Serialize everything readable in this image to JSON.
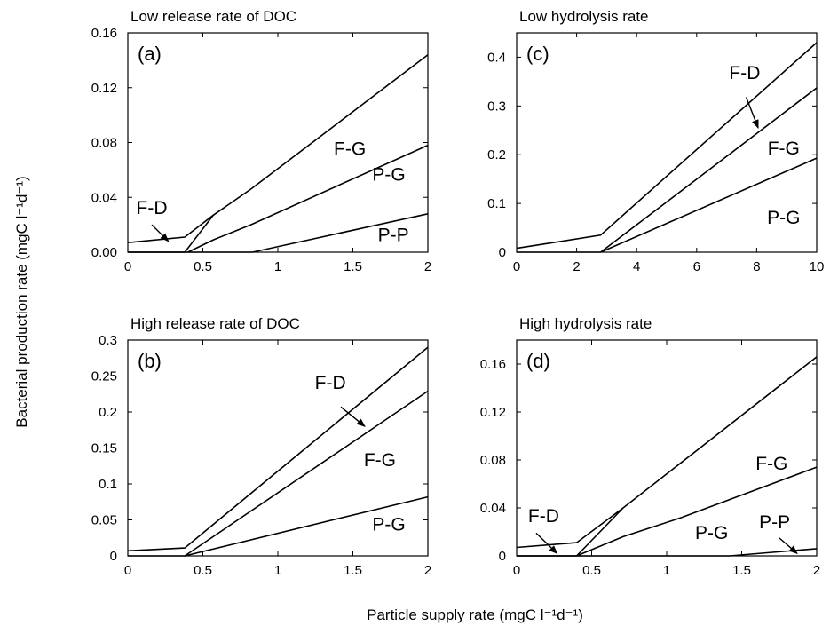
{
  "figure": {
    "ylabel": "Bacterial production rate (mgC l⁻¹d⁻¹)",
    "xlabel": "Particle supply rate (mgC l⁻¹d⁻¹)"
  },
  "chart_data": [
    {
      "id": "a",
      "type": "line",
      "panel_letter": "(a)",
      "title": "Low release rate of DOC",
      "xlim": [
        0,
        2
      ],
      "ylim": [
        0,
        0.16
      ],
      "xticks": [
        0,
        0.5,
        1,
        1.5,
        2
      ],
      "xtick_labels": [
        "0",
        "0.5",
        "1",
        "1.5",
        "2"
      ],
      "yticks": [
        0,
        0.04,
        0.08,
        0.12,
        0.16
      ],
      "ytick_labels": [
        "0.00",
        "0.04",
        "0.08",
        "0.12",
        "0.16"
      ],
      "series": [
        {
          "points": [
            [
              0,
              0.007
            ],
            [
              0.38,
              0.011
            ],
            [
              0.57,
              0.027
            ],
            [
              0.82,
              0.046
            ],
            [
              2,
              0.144
            ]
          ]
        },
        {
          "points": [
            [
              0,
              0
            ],
            [
              0.38,
              0
            ],
            [
              0.57,
              0.027
            ]
          ]
        },
        {
          "points": [
            [
              0.4,
              0
            ],
            [
              0.57,
              0.009
            ],
            [
              0.82,
              0.02
            ],
            [
              2,
              0.078
            ]
          ]
        },
        {
          "points": [
            [
              0,
              0
            ],
            [
              0.83,
              0
            ],
            [
              2,
              0.028
            ]
          ]
        }
      ],
      "region_labels": [
        {
          "text": "F-G",
          "x": 1.48,
          "y": 0.071
        },
        {
          "text": "P-G",
          "x": 1.74,
          "y": 0.052
        },
        {
          "text": "P-P",
          "x": 1.77,
          "y": 0.008
        },
        {
          "text": "F-D",
          "x": 0.16,
          "y": 0.028
        }
      ],
      "arrows": [
        {
          "from": [
            0.16,
            0.02
          ],
          "to": [
            0.27,
            0.008
          ]
        }
      ]
    },
    {
      "id": "b",
      "type": "line",
      "panel_letter": "(b)",
      "title": "High release rate of DOC",
      "xlim": [
        0,
        2
      ],
      "ylim": [
        0,
        0.3
      ],
      "xticks": [
        0,
        0.5,
        1,
        1.5,
        2
      ],
      "xtick_labels": [
        "0",
        "0.5",
        "1",
        "1.5",
        "2"
      ],
      "yticks": [
        0,
        0.05,
        0.1,
        0.15,
        0.2,
        0.25,
        0.3
      ],
      "ytick_labels": [
        "0",
        "0.05",
        "0.1",
        "0.15",
        "0.2",
        "0.25",
        "0.3"
      ],
      "series": [
        {
          "points": [
            [
              0,
              0.007
            ],
            [
              0.38,
              0.011
            ],
            [
              2,
              0.29
            ]
          ]
        },
        {
          "points": [
            [
              0,
              0
            ],
            [
              0.38,
              0
            ],
            [
              2,
              0.229
            ]
          ]
        },
        {
          "points": [
            [
              0.38,
              0
            ],
            [
              2,
              0.082
            ]
          ]
        }
      ],
      "region_labels": [
        {
          "text": "F-D",
          "x": 1.35,
          "y": 0.232
        },
        {
          "text": "F-G",
          "x": 1.68,
          "y": 0.125
        },
        {
          "text": "P-G",
          "x": 1.74,
          "y": 0.035
        }
      ],
      "arrows": [
        {
          "from": [
            1.42,
            0.207
          ],
          "to": [
            1.58,
            0.18
          ]
        }
      ]
    },
    {
      "id": "c",
      "type": "line",
      "panel_letter": "(c)",
      "title": "Low hydrolysis rate",
      "xlim": [
        0,
        10
      ],
      "ylim": [
        0,
        0.45
      ],
      "xticks": [
        0,
        2,
        4,
        6,
        8,
        10
      ],
      "xtick_labels": [
        "0",
        "2",
        "4",
        "6",
        "8",
        "10"
      ],
      "yticks": [
        0,
        0.1,
        0.2,
        0.3,
        0.4
      ],
      "ytick_labels": [
        "0",
        "0.1",
        "0.2",
        "0.3",
        "0.4"
      ],
      "series": [
        {
          "points": [
            [
              0,
              0.008
            ],
            [
              2.8,
              0.035
            ],
            [
              10,
              0.43
            ]
          ]
        },
        {
          "points": [
            [
              0,
              0
            ],
            [
              2.8,
              0
            ],
            [
              10,
              0.337
            ]
          ]
        },
        {
          "points": [
            [
              2.8,
              0
            ],
            [
              10,
              0.193
            ]
          ]
        }
      ],
      "region_labels": [
        {
          "text": "F-D",
          "x": 7.6,
          "y": 0.355
        },
        {
          "text": "F-G",
          "x": 8.9,
          "y": 0.2
        },
        {
          "text": "P-G",
          "x": 8.9,
          "y": 0.058
        }
      ],
      "arrows": [
        {
          "from": [
            7.65,
            0.318
          ],
          "to": [
            8.05,
            0.255
          ]
        }
      ]
    },
    {
      "id": "d",
      "type": "line",
      "panel_letter": "(d)",
      "title": "High hydrolysis rate",
      "xlim": [
        0,
        2
      ],
      "ylim": [
        0,
        0.18
      ],
      "xticks": [
        0,
        0.5,
        1,
        1.5,
        2
      ],
      "xtick_labels": [
        "0",
        "0.5",
        "1",
        "1.5",
        "2"
      ],
      "yticks": [
        0,
        0.04,
        0.08,
        0.12,
        0.16
      ],
      "ytick_labels": [
        "0",
        "0.04",
        "0.08",
        "0.12",
        "0.16"
      ],
      "series": [
        {
          "points": [
            [
              0,
              0.007
            ],
            [
              0.4,
              0.011
            ],
            [
              0.71,
              0.04
            ],
            [
              2,
              0.166
            ]
          ]
        },
        {
          "points": [
            [
              0,
              0
            ],
            [
              0.4,
              0
            ],
            [
              0.71,
              0.04
            ]
          ]
        },
        {
          "points": [
            [
              0.4,
              0
            ],
            [
              0.71,
              0.016
            ],
            [
              1.1,
              0.032
            ],
            [
              2,
              0.074
            ]
          ]
        },
        {
          "points": [
            [
              0,
              0
            ],
            [
              1.42,
              0
            ],
            [
              2,
              0.006
            ]
          ]
        }
      ],
      "region_labels": [
        {
          "text": "F-G",
          "x": 1.7,
          "y": 0.072
        },
        {
          "text": "P-G",
          "x": 1.3,
          "y": 0.014
        },
        {
          "text": "P-P",
          "x": 1.72,
          "y": 0.023
        },
        {
          "text": "F-D",
          "x": 0.18,
          "y": 0.028
        }
      ],
      "arrows": [
        {
          "from": [
            0.13,
            0.019
          ],
          "to": [
            0.27,
            0.002
          ]
        },
        {
          "from": [
            1.75,
            0.015
          ],
          "to": [
            1.87,
            0.002
          ]
        }
      ]
    }
  ]
}
